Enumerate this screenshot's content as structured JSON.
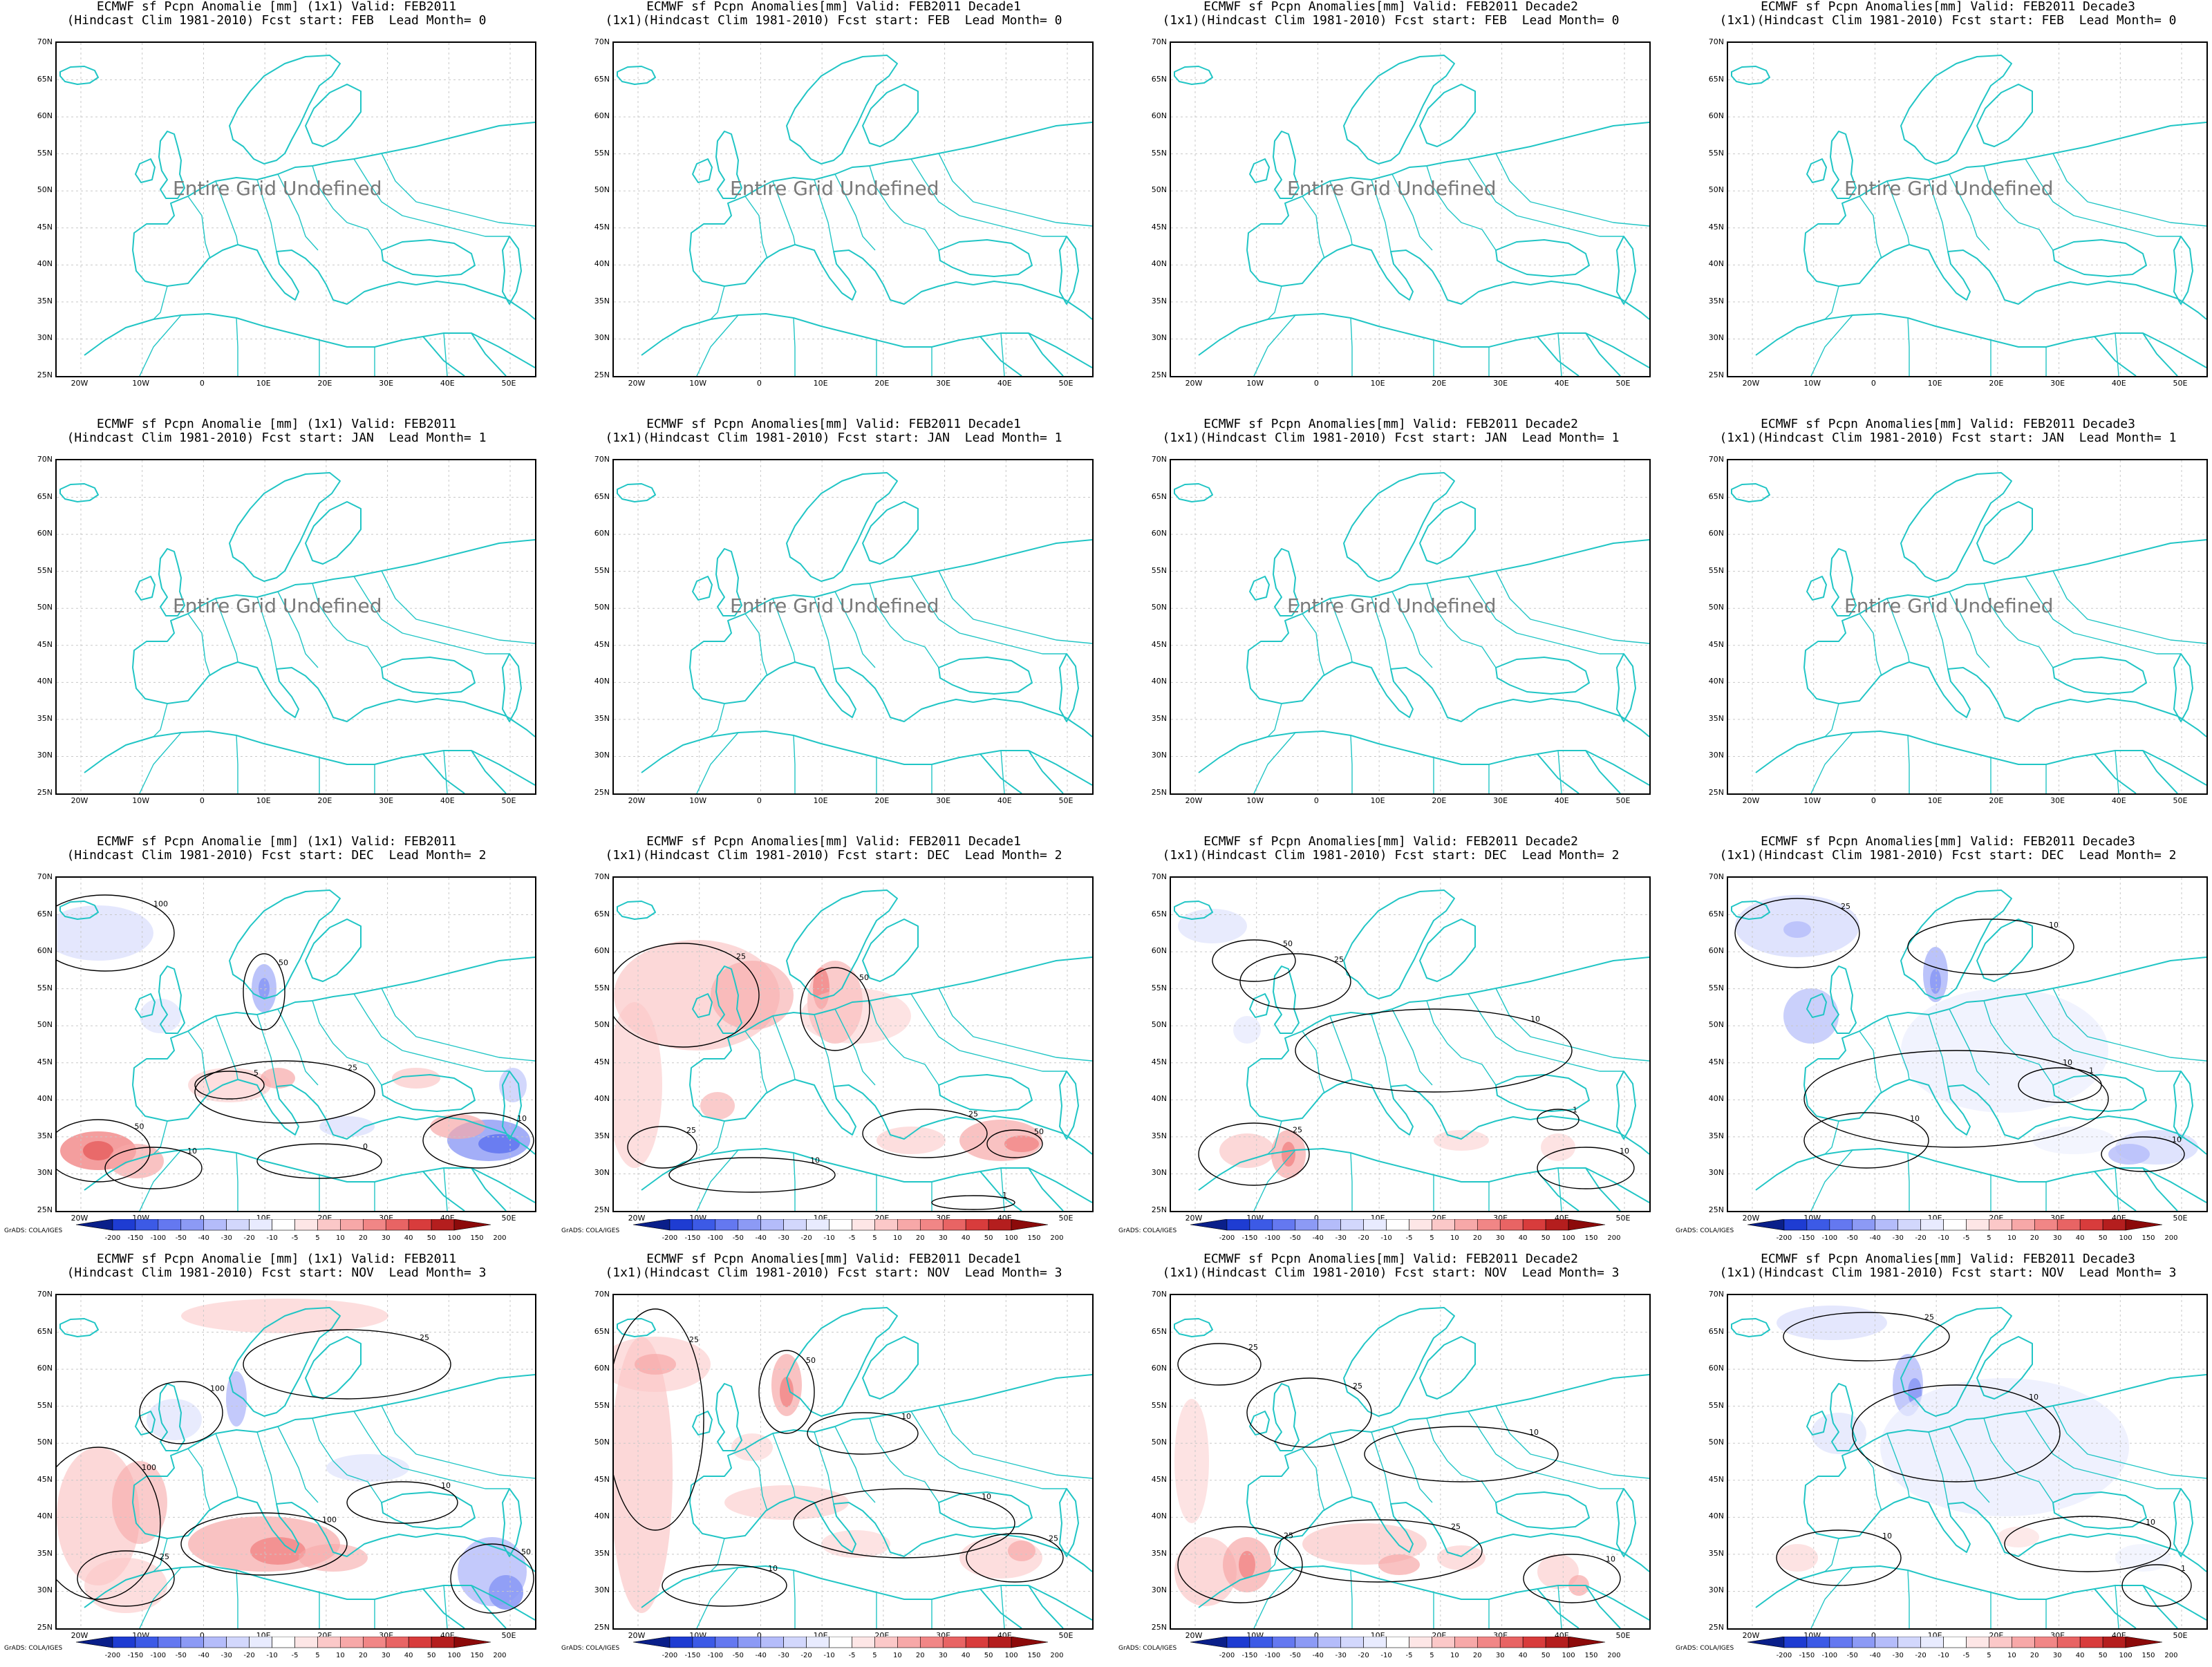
{
  "undefined_text": "Entire Grid Undefined",
  "credit": "GrADS: COLA/IGES",
  "lat_labels": [
    "70N",
    "65N",
    "60N",
    "55N",
    "50N",
    "45N",
    "40N",
    "35N",
    "30N",
    "25N"
  ],
  "lon_labels": [
    "20W",
    "10W",
    "0",
    "10E",
    "20E",
    "30E",
    "40E",
    "50E"
  ],
  "colorbar_labels": [
    "-200",
    "-150",
    "-100",
    "-50",
    "-40",
    "-30",
    "-20",
    "-10",
    "-5",
    "5",
    "10",
    "20",
    "30",
    "40",
    "50",
    "100",
    "150",
    "200"
  ],
  "colors": {
    "coast": "#21c5c5",
    "contour": "#000000",
    "grid": "#c8c8c8",
    "colorbar": [
      "#0a1f8a",
      "#1e3cd2",
      "#3c5ae6",
      "#6478f0",
      "#8c9af5",
      "#b4bcfa",
      "#d2d7fc",
      "#e8ebfe",
      "#ffffff",
      "#fde6e6",
      "#fbc8c8",
      "#f7a8a8",
      "#f18686",
      "#e86464",
      "#d83c3c",
      "#b41e1e",
      "#8c0a0a"
    ]
  },
  "panels": [
    {
      "line1": "ECMWF sf Pcpn Anomalie [mm] (1x1) Valid: FEB2011",
      "line2": "(Hindcast Clim 1981-2010) Fcst start: FEB  Lead Month= 0",
      "undefined": true
    },
    {
      "line1": "ECMWF sf Pcpn Anomalies[mm] Valid: FEB2011 Decade1",
      "line2": "(1x1)(Hindcast Clim 1981-2010) Fcst start: FEB  Lead Month= 0",
      "undefined": true
    },
    {
      "line1": "ECMWF sf Pcpn Anomalies[mm] Valid: FEB2011 Decade2",
      "line2": "(1x1)(Hindcast Clim 1981-2010) Fcst start: FEB  Lead Month= 0",
      "undefined": true
    },
    {
      "line1": "ECMWF sf Pcpn Anomalies[mm] Valid: FEB2011 Decade3",
      "line2": "(1x1)(Hindcast Clim 1981-2010) Fcst start: FEB  Lead Month= 0",
      "undefined": true
    },
    {
      "line1": "ECMWF sf Pcpn Anomalie [mm] (1x1) Valid: FEB2011",
      "line2": "(Hindcast Clim 1981-2010) Fcst start: JAN  Lead Month= 1",
      "undefined": true
    },
    {
      "line1": "ECMWF sf Pcpn Anomalies[mm] Valid: FEB2011 Decade1",
      "line2": "(1x1)(Hindcast Clim 1981-2010) Fcst start: JAN  Lead Month= 1",
      "undefined": true
    },
    {
      "line1": "ECMWF sf Pcpn Anomalies[mm] Valid: FEB2011 Decade2",
      "line2": "(1x1)(Hindcast Clim 1981-2010) Fcst start: JAN  Lead Month= 1",
      "undefined": true
    },
    {
      "line1": "ECMWF sf Pcpn Anomalies[mm] Valid: FEB2011 Decade3",
      "line2": "(1x1)(Hindcast Clim 1981-2010) Fcst start: JAN  Lead Month= 1",
      "undefined": true
    },
    {
      "line1": "ECMWF sf Pcpn Anomalie [mm] (1x1) Valid: FEB2011",
      "line2": "(Hindcast Clim 1981-2010) Fcst start: DEC  Lead Month= 2",
      "undefined": false,
      "variant": 0
    },
    {
      "line1": "ECMWF sf Pcpn Anomalies[mm] Valid: FEB2011 Decade1",
      "line2": "(1x1)(Hindcast Clim 1981-2010) Fcst start: DEC  Lead Month= 2",
      "undefined": false,
      "variant": 1
    },
    {
      "line1": "ECMWF sf Pcpn Anomalies[mm] Valid: FEB2011 Decade2",
      "line2": "(1x1)(Hindcast Clim 1981-2010) Fcst start: DEC  Lead Month= 2",
      "undefined": false,
      "variant": 2
    },
    {
      "line1": "ECMWF sf Pcpn Anomalies[mm] Valid: FEB2011 Decade3",
      "line2": "(1x1)(Hindcast Clim 1981-2010) Fcst start: DEC  Lead Month= 2",
      "undefined": false,
      "variant": 3
    },
    {
      "line1": "ECMWF sf Pcpn Anomalie [mm] (1x1) Valid: FEB2011",
      "line2": "(Hindcast Clim 1981-2010) Fcst start: NOV  Lead Month= 3",
      "undefined": false,
      "variant": 4
    },
    {
      "line1": "ECMWF sf Pcpn Anomalies[mm] Valid: FEB2011 Decade1",
      "line2": "(1x1)(Hindcast Clim 1981-2010) Fcst start: NOV  Lead Month= 3",
      "undefined": false,
      "variant": 5
    },
    {
      "line1": "ECMWF sf Pcpn Anomalies[mm] Valid: FEB2011 Decade2",
      "line2": "(1x1)(Hindcast Clim 1981-2010) Fcst start: NOV  Lead Month= 3",
      "undefined": false,
      "variant": 6
    },
    {
      "line1": "ECMWF sf Pcpn Anomalies[mm] Valid: FEB2011 Decade3",
      "line2": "(1x1)(Hindcast Clim 1981-2010) Fcst start: NOV  Lead Month= 3",
      "undefined": false,
      "variant": 7
    }
  ]
}
